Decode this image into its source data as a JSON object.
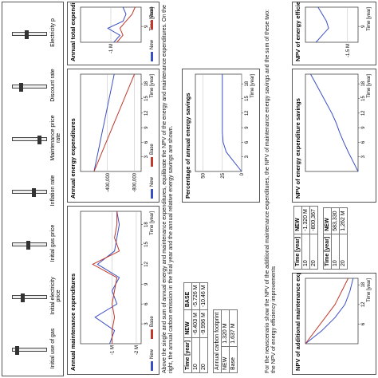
{
  "controls": [
    "Initial use of gas",
    "Initial electricity price",
    "Initial gas price",
    "Inflation rate",
    "Maintenance price rate",
    "Discount rate",
    "Electricity p"
  ],
  "note1": "Above the single and sum of annual energy and maintenance expenditures, equilibrate the NPV of the energy and maintenance expenditures. On the right, the annual carbon emission in the final year and the annual relative energy savings are shown.",
  "note2": "For the newscenario show the NPV of the additional maintenance expenditures, the NPV of maintenance energy savings and the sum of these two: the NPV of energy efficiency improvements",
  "table1": {
    "header": [
      "Time [year]",
      "NEW",
      "BASE"
    ],
    "rows": [
      [
        "10",
        "-6.403 M",
        "-5.726 M"
      ],
      [
        "20",
        "-9.996 M",
        "-10.46 M"
      ]
    ]
  },
  "carbon": {
    "title": "Annual carbon footprint",
    "rows": [
      [
        "NEW",
        "1.320 M"
      ],
      [
        "Base",
        "1.637 M"
      ]
    ]
  },
  "table2": {
    "header": [
      "Time [year]",
      "NEW"
    ],
    "rows": [
      [
        "10",
        "-1.320 M"
      ],
      [
        "20",
        "-800,367"
      ]
    ]
  },
  "table3": {
    "header": [
      "Time [year]",
      "NEW"
    ],
    "rows": [
      [
        "10",
        "583,330"
      ],
      [
        "20",
        "1,262 M"
      ]
    ]
  },
  "charts": [
    {
      "title": "Annual maintenance expenditures",
      "xlabel": "Time [year]",
      "x": [
        0,
        2,
        4,
        6,
        8,
        10,
        12,
        14,
        16,
        18,
        20
      ],
      "xlim": [
        0,
        20
      ],
      "xticks": [
        3,
        6,
        9,
        12,
        15,
        18
      ],
      "ylim": [
        -2200000,
        300000
      ],
      "yticks": [
        {
          "value": -2000000,
          "label": "-2 M"
        },
        {
          "value": -1000000,
          "label": "-1 M"
        }
      ],
      "series": [
        {
          "name": "New",
          "color": "#3b4fc4",
          "values": [
            -900000,
            -1100000,
            -300000,
            -1200000,
            -1000000,
            -1300000,
            -400000,
            -1100000,
            -1200000,
            -1300000,
            -1200000
          ]
        },
        {
          "name": "Base",
          "color": "#c0392b",
          "values": [
            -1000000,
            -1000000,
            -1100000,
            -1000000,
            -1100000,
            -1200000,
            -200000,
            -1300000,
            -1100000,
            -1200000,
            -1200000
          ]
        }
      ]
    },
    {
      "title": "Annual energy expenditures",
      "xlabel": "Time [year]",
      "x": [
        0,
        2,
        4,
        6,
        8,
        10,
        12,
        14,
        16,
        18,
        20
      ],
      "xlim": [
        0,
        20
      ],
      "xticks": [
        3,
        6,
        9,
        12,
        15,
        18
      ],
      "ylim": [
        -900000,
        0
      ],
      "yticks": [
        {
          "value": -800000,
          "label": "-800,000"
        },
        {
          "value": -400000,
          "label": "-400,000"
        }
      ],
      "series": [
        {
          "name": "New",
          "color": "#3b4fc4",
          "values": [
            -200000,
            -230000,
            -260000,
            -290000,
            -320000,
            -350000,
            -380000,
            -410000,
            -440000,
            -470000,
            -500000
          ]
        },
        {
          "name": "Base",
          "color": "#c0392b",
          "values": [
            -200000,
            -260000,
            -320000,
            -380000,
            -440000,
            -500000,
            -560000,
            -620000,
            -680000,
            -740000,
            -800000
          ]
        }
      ]
    },
    {
      "title": "Annual total expenditures",
      "xlabel": "Time [year]",
      "x": [
        0,
        4,
        8,
        12,
        16,
        20
      ],
      "xlim": [
        0,
        20
      ],
      "xticks": [
        9
      ],
      "ylim": [
        -2000000,
        0
      ],
      "yticks": [
        {
          "value": -1000000,
          "label": "-1 M"
        }
      ],
      "series": [
        {
          "name": "New",
          "color": "#3b4fc4",
          "values": [
            -1100000,
            -1300000,
            -900000,
            -1400000,
            -1500000,
            -1400000
          ]
        },
        {
          "name": "Base",
          "color": "#c0392b",
          "values": [
            -1200000,
            -1400000,
            -1300000,
            -1500000,
            -1700000,
            -1800000
          ]
        }
      ]
    },
    {
      "title": "Percentage of annual energy savings",
      "xlabel": "Time [year]",
      "x": [
        0,
        2,
        4,
        6,
        8,
        10,
        12,
        14,
        16,
        18,
        20
      ],
      "xlim": [
        0,
        20
      ],
      "xticks": [
        3,
        6,
        9,
        12,
        15,
        18
      ],
      "ylim": [
        0,
        60
      ],
      "yticks": [
        0,
        25,
        50
      ],
      "series": [
        {
          "color": "#3b4fc4",
          "values": [
            0,
            10,
            20,
            24,
            25,
            25,
            25,
            25,
            25,
            25,
            25
          ]
        }
      ]
    },
    {
      "title": "NPV of energy expenditure savings",
      "xlabel": "Time [year]",
      "x": [
        0,
        2,
        4,
        6,
        8,
        10,
        12,
        14,
        16,
        18,
        20
      ],
      "xlim": [
        0,
        20
      ],
      "xticks": [
        3,
        6,
        9,
        12,
        15,
        18
      ],
      "ylim": [
        0,
        1400000
      ],
      "series": [
        {
          "color": "#3b4fc4",
          "values": [
            0,
            130000,
            260000,
            380000,
            490000,
            583330,
            700000,
            840000,
            980000,
            1120000,
            1262000
          ]
        }
      ]
    },
    {
      "title": "NPV of energy efficiency improvements",
      "xlabel": "Time [year]",
      "x": [
        0,
        4,
        8,
        12,
        16,
        20
      ],
      "xlim": [
        0,
        20
      ],
      "xticks": [
        9
      ],
      "ylim": [
        -2000000,
        500000
      ],
      "yticks": [
        {
          "value": -1500000,
          "label": "-1.5 M"
        }
      ],
      "series": [
        {
          "color": "#3b4fc4",
          "values": [
            0,
            -300000,
            -600000,
            -500000,
            -300000,
            -100000
          ]
        }
      ]
    },
    {
      "title": "NPV of additional maintenance expenditures",
      "xlabel": "Time [year]",
      "x": [
        0,
        4,
        8,
        12,
        16,
        20
      ],
      "xlim": [
        0,
        20
      ],
      "xticks": [
        6,
        12,
        18
      ],
      "ylim": [
        -1600000,
        0
      ],
      "series": [
        {
          "color": "#3b4fc4",
          "values": [
            0,
            -500000,
            -900000,
            -1200000,
            -1350000,
            -1450000
          ]
        },
        {
          "color": "#c0392b",
          "values": [
            0,
            -300000,
            -600000,
            -900000,
            -1100000,
            -1300000
          ]
        }
      ]
    }
  ]
}
